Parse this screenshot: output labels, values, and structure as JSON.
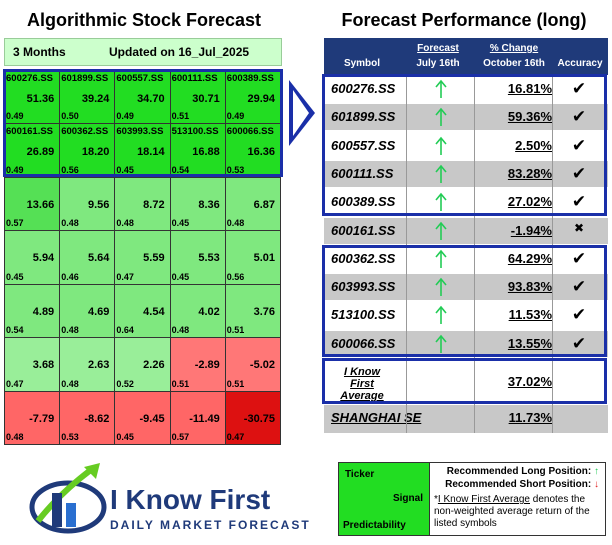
{
  "left": {
    "title": "Algorithmic Stock Forecast",
    "horizon": "3 Months",
    "updated": "Updated on 16_Jul_2025",
    "rows": [
      [
        {
          "symbol": "600276.SS",
          "signal": "51.36",
          "predictability": "0.49",
          "color": "g1"
        },
        {
          "symbol": "601899.SS",
          "signal": "39.24",
          "predictability": "0.50",
          "color": "g1"
        },
        {
          "symbol": "600557.SS",
          "signal": "34.70",
          "predictability": "0.49",
          "color": "g1"
        },
        {
          "symbol": "600111.SS",
          "signal": "30.71",
          "predictability": "0.51",
          "color": "g1"
        },
        {
          "symbol": "600389.SS",
          "signal": "29.94",
          "predictability": "0.49",
          "color": "g1"
        }
      ],
      [
        {
          "symbol": "600161.SS",
          "signal": "26.89",
          "predictability": "0.49",
          "color": "g1"
        },
        {
          "symbol": "600362.SS",
          "signal": "18.20",
          "predictability": "0.56",
          "color": "g1"
        },
        {
          "symbol": "603993.SS",
          "signal": "18.14",
          "predictability": "0.45",
          "color": "g1"
        },
        {
          "symbol": "513100.SS",
          "signal": "16.88",
          "predictability": "0.54",
          "color": "g1"
        },
        {
          "symbol": "600066.SS",
          "signal": "16.36",
          "predictability": "0.53",
          "color": "g1"
        }
      ],
      [
        {
          "symbol": "",
          "signal": "13.66",
          "predictability": "0.57",
          "color": "g2"
        },
        {
          "symbol": "",
          "signal": "9.56",
          "predictability": "0.48",
          "color": "g3"
        },
        {
          "symbol": "",
          "signal": "8.72",
          "predictability": "0.48",
          "color": "g3"
        },
        {
          "symbol": "",
          "signal": "8.36",
          "predictability": "0.45",
          "color": "g3"
        },
        {
          "symbol": "",
          "signal": "6.87",
          "predictability": "0.48",
          "color": "g3"
        }
      ],
      [
        {
          "symbol": "",
          "signal": "5.94",
          "predictability": "0.45",
          "color": "g3"
        },
        {
          "symbol": "",
          "signal": "5.64",
          "predictability": "0.46",
          "color": "g3"
        },
        {
          "symbol": "",
          "signal": "5.59",
          "predictability": "0.47",
          "color": "g3"
        },
        {
          "symbol": "",
          "signal": "5.53",
          "predictability": "0.45",
          "color": "g3"
        },
        {
          "symbol": "",
          "signal": "5.01",
          "predictability": "0.56",
          "color": "g3"
        }
      ],
      [
        {
          "symbol": "",
          "signal": "4.89",
          "predictability": "0.54",
          "color": "g3"
        },
        {
          "symbol": "",
          "signal": "4.69",
          "predictability": "0.48",
          "color": "g3"
        },
        {
          "symbol": "",
          "signal": "4.54",
          "predictability": "0.64",
          "color": "g3"
        },
        {
          "symbol": "",
          "signal": "4.02",
          "predictability": "0.48",
          "color": "g3"
        },
        {
          "symbol": "",
          "signal": "3.76",
          "predictability": "0.51",
          "color": "g3"
        }
      ],
      [
        {
          "symbol": "",
          "signal": "3.68",
          "predictability": "0.47",
          "color": "g4"
        },
        {
          "symbol": "",
          "signal": "2.63",
          "predictability": "0.48",
          "color": "g4"
        },
        {
          "symbol": "",
          "signal": "2.26",
          "predictability": "0.52",
          "color": "g4"
        },
        {
          "symbol": "",
          "signal": "-2.89",
          "predictability": "0.51",
          "color": "r1"
        },
        {
          "symbol": "",
          "signal": "-5.02",
          "predictability": "0.51",
          "color": "r1"
        }
      ],
      [
        {
          "symbol": "",
          "signal": "-7.79",
          "predictability": "0.48",
          "color": "r2"
        },
        {
          "symbol": "",
          "signal": "-8.62",
          "predictability": "0.53",
          "color": "r2"
        },
        {
          "symbol": "",
          "signal": "-9.45",
          "predictability": "0.45",
          "color": "r2"
        },
        {
          "symbol": "",
          "signal": "-11.49",
          "predictability": "0.57",
          "color": "r2"
        },
        {
          "symbol": "",
          "signal": "-30.75",
          "predictability": "0.47",
          "color": "r3"
        }
      ]
    ]
  },
  "right": {
    "title": "Forecast Performance (long)",
    "headers": {
      "symbol": "Symbol",
      "forecast_top": "Forecast",
      "forecast_bottom": "July 16th",
      "change_top": "% Change",
      "change_bottom": "October 16th",
      "accuracy": "Accuracy"
    },
    "rows": [
      {
        "symbol": "600276.SS",
        "change": "16.81%",
        "accuracy": "✔"
      },
      {
        "symbol": "601899.SS",
        "change": "59.36%",
        "accuracy": "✔"
      },
      {
        "symbol": "600557.SS",
        "change": "2.50%",
        "accuracy": "✔"
      },
      {
        "symbol": "600111.SS",
        "change": "83.28%",
        "accuracy": "✔"
      },
      {
        "symbol": "600389.SS",
        "change": "27.02%",
        "accuracy": "✔"
      },
      {
        "symbol": "600161.SS",
        "change": "-1.94%",
        "accuracy": "✖"
      },
      {
        "symbol": "600362.SS",
        "change": "64.29%",
        "accuracy": "✔"
      },
      {
        "symbol": "603993.SS",
        "change": "93.83%",
        "accuracy": "✔"
      },
      {
        "symbol": "513100.SS",
        "change": "11.53%",
        "accuracy": "✔"
      },
      {
        "symbol": "600066.SS",
        "change": "13.55%",
        "accuracy": "✔"
      }
    ],
    "average_label_line1": "I Know First",
    "average_label_line2": "Average",
    "average_value": "37.02%",
    "benchmark_label": "SHANGHAI SE",
    "benchmark_value": "11.73%"
  },
  "legend": {
    "ticker": "Ticker",
    "signal": "Signal",
    "predictability": "Predictability",
    "long_text": "Recommended Long Position:",
    "short_text": "Recommended Short Position:",
    "note_link": "I Know First Average",
    "note_rest": " denotes the non-weighted average return of the listed symbols"
  },
  "logo": {
    "name": "I Know First",
    "tagline": "DAILY MARKET FORECAST"
  },
  "colors": {
    "green_strong": "#22dd22",
    "green_light": "#99ee99",
    "red": "#ff6666",
    "red_dark": "#dd1111",
    "frame_blue": "#1a2fa8",
    "header_navy": "#1f3a7a",
    "arrow_up": "#22cc55",
    "arrow_down": "#e02020"
  }
}
